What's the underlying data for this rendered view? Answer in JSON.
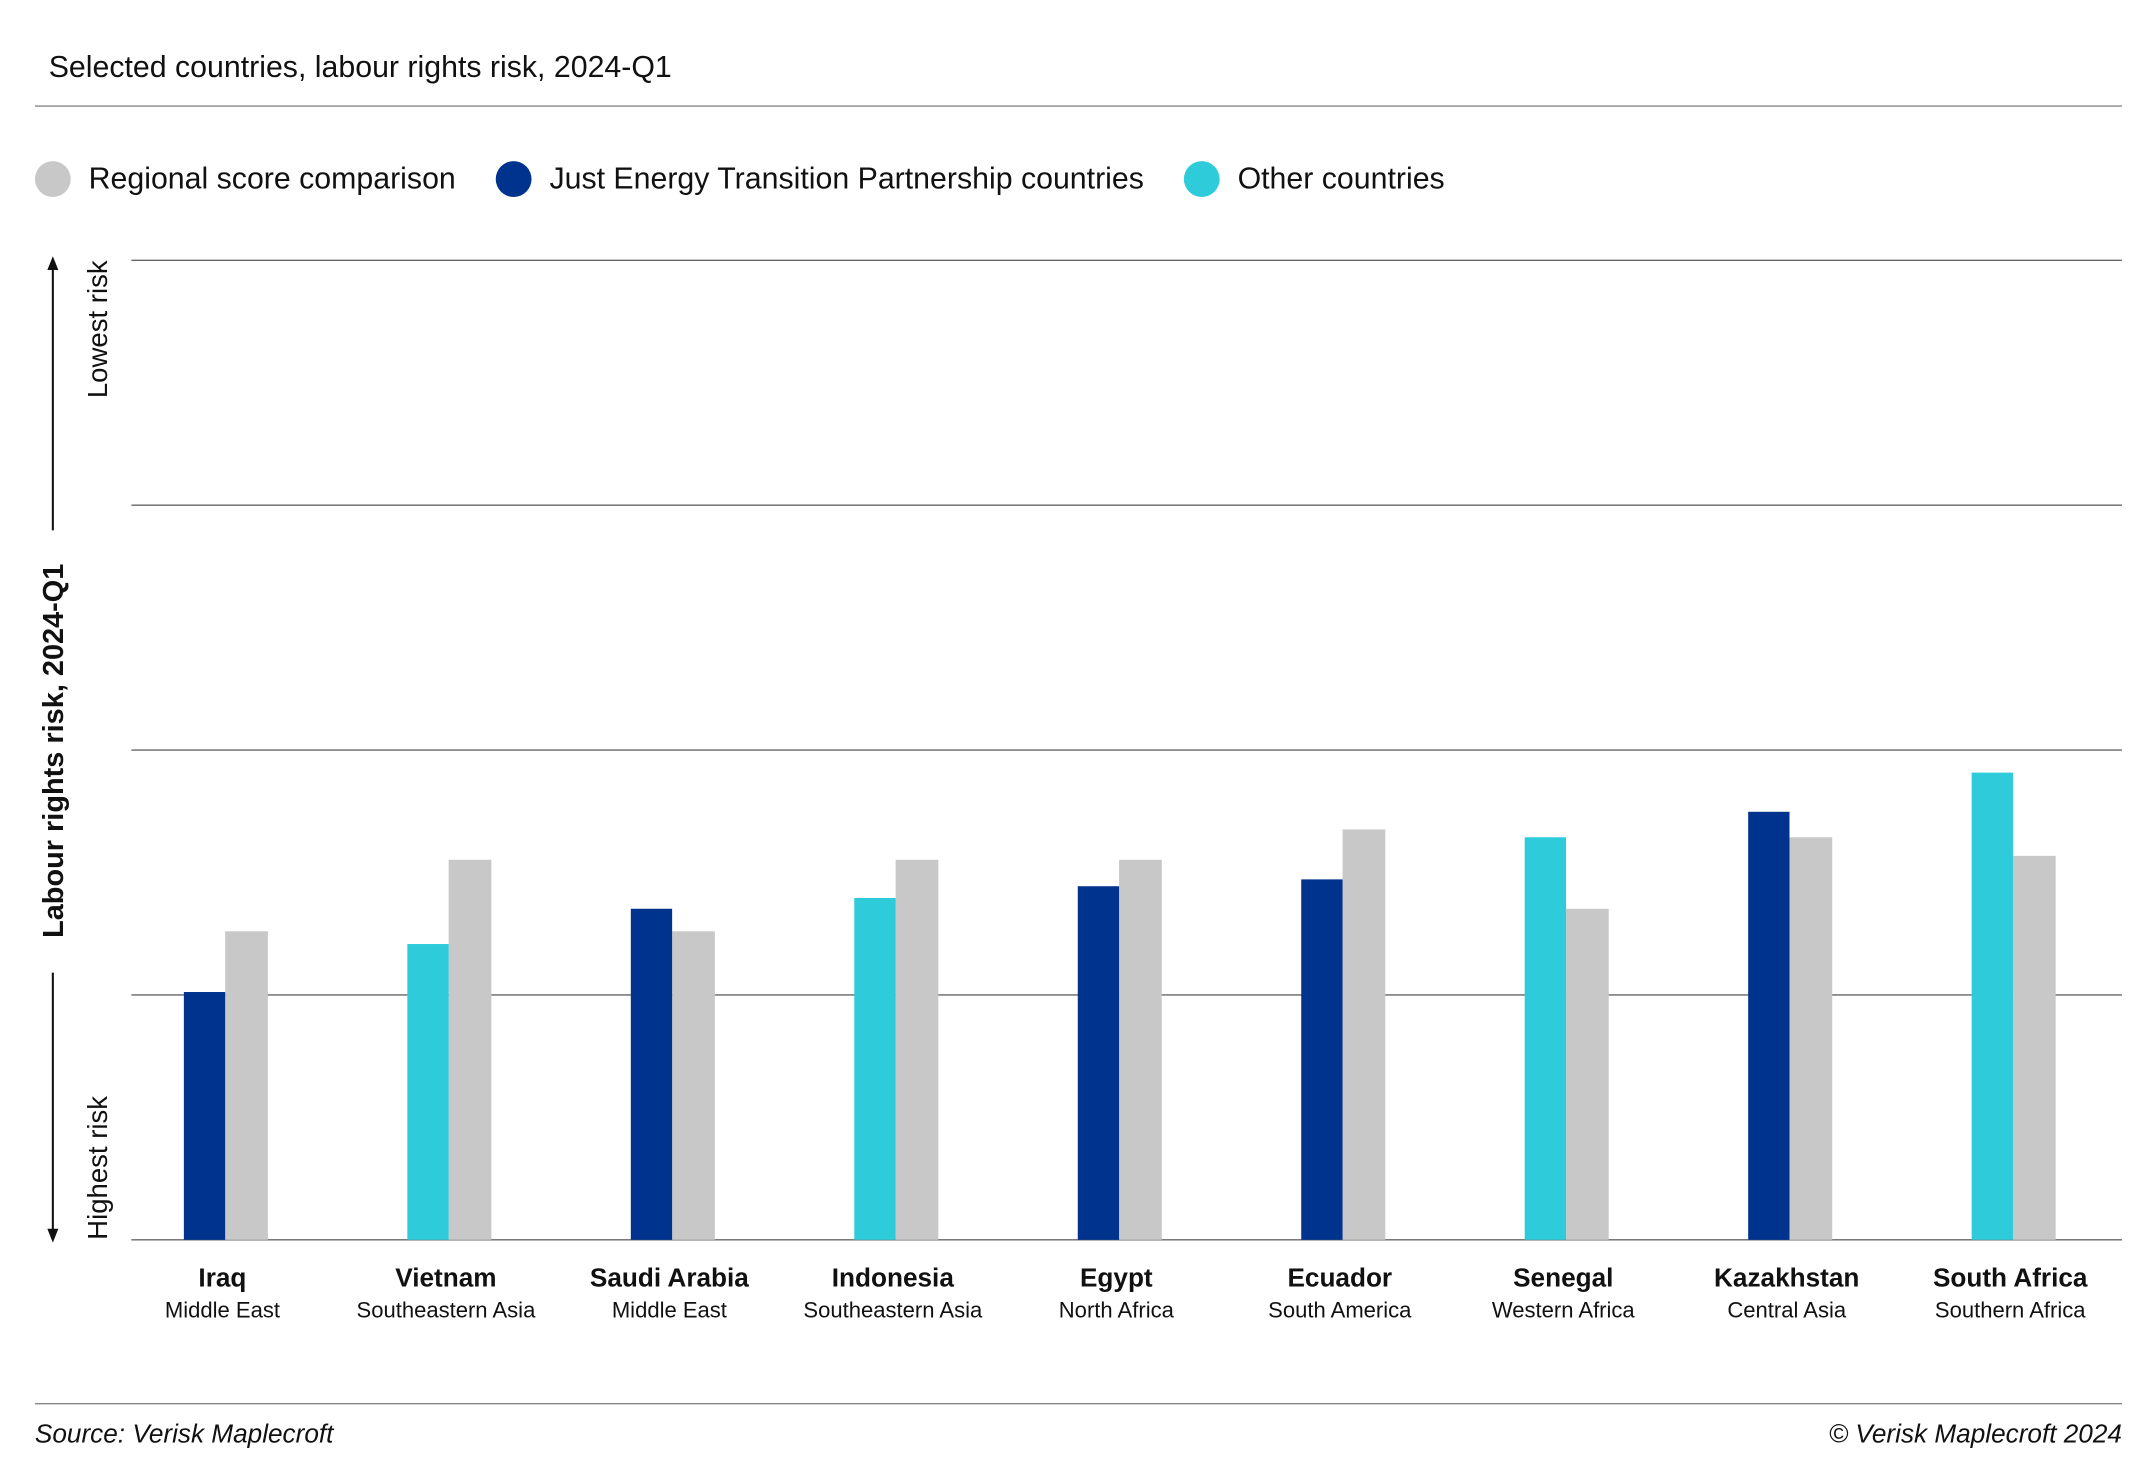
{
  "chart_data": {
    "type": "bar",
    "title": "Selected countries, labour rights risk, 2024-Q1",
    "y_label": "Labour rights risk, 2024-Q1",
    "y_top_label": "Lowest risk",
    "y_bottom_label": "Highest risk",
    "source": "Source: Verisk Maplecroft",
    "copyright": "© Verisk Maplecroft 2024",
    "categories": [
      "Iraq",
      "Vietnam",
      "Saudi Arabia",
      "Indonesia",
      "Egypt",
      "Ecuador",
      "Senegal",
      "Kazakhstan",
      "South Africa"
    ],
    "regions": [
      "Middle East",
      "Southeastern Asia",
      "Middle East",
      "Southeastern Asia",
      "North Africa",
      "South America",
      "Western Africa",
      "Central Asia",
      "Southern Africa"
    ],
    "series": [
      {
        "name": "Regional score comparison",
        "color": "#c8c8c8",
        "values": [
          3.15,
          3.88,
          3.15,
          3.88,
          3.88,
          4.19,
          3.38,
          4.11,
          3.92
        ]
      },
      {
        "name": "Just Energy Transition Partnership countries",
        "color": "#00338d",
        "values": [
          2.53,
          null,
          3.38,
          null,
          3.61,
          3.68,
          null,
          4.37,
          null
        ]
      },
      {
        "name": "Other countries",
        "color": "#2ecbda",
        "values": [
          null,
          3.02,
          null,
          3.49,
          null,
          null,
          4.11,
          null,
          4.77
        ]
      }
    ],
    "ylim": [
      0,
      10
    ],
    "yticks": [
      0,
      2.5,
      5,
      7.5,
      10
    ],
    "grid": true
  }
}
